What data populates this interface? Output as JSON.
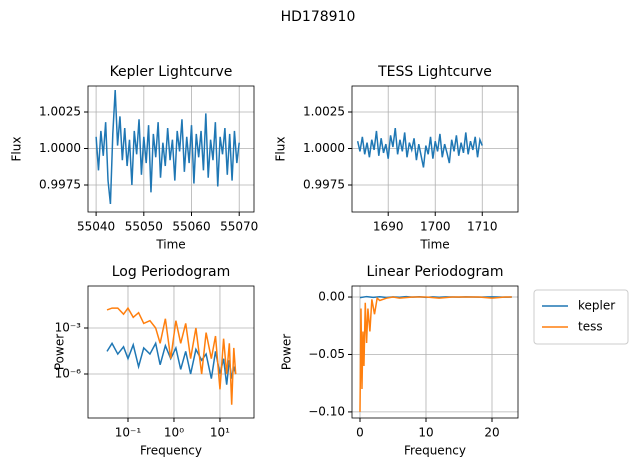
{
  "title": "HD178910",
  "chart_data": [
    {
      "type": "line",
      "title": "Kepler Lightcurve",
      "xlabel": "Time",
      "ylabel": "Flux",
      "grid": true,
      "xlim": [
        55038.3,
        55073.1
      ],
      "ylim": [
        0.99565,
        1.00428
      ],
      "xticks": [
        55040,
        55050,
        55060,
        55070
      ],
      "yticks": [
        0.9975,
        {
          "value": 1,
          "label": "1.0000"
        },
        1.0025
      ],
      "series": [
        {
          "name": "kepler",
          "color": "#1f77b4",
          "x": [
            55040,
            55040.5,
            55041,
            55041.5,
            55042,
            55042.5,
            55043,
            55043.5,
            55044,
            55044.5,
            55045,
            55045.5,
            55046,
            55046.5,
            55047,
            55047.5,
            55048,
            55048.5,
            55049,
            55049.5,
            55050,
            55050.5,
            55051,
            55051.5,
            55052,
            55052.5,
            55053,
            55053.5,
            55054,
            55054.5,
            55055,
            55055.5,
            55056,
            55056.5,
            55057,
            55057.5,
            55058,
            55058.5,
            55059,
            55059.5,
            55060,
            55060.5,
            55061,
            55061.5,
            55062,
            55062.5,
            55063,
            55063.5,
            55064,
            55064.5,
            55065,
            55065.5,
            55066,
            55066.5,
            55067,
            55067.5,
            55068,
            55068.5,
            55069,
            55069.5,
            55070
          ],
          "values": [
            1.0008,
            0.9985,
            1.0012,
            0.9995,
            1.0018,
            0.9978,
            0.9962,
            1.001,
            1.004,
            1.0002,
            1.0022,
            0.9992,
            1.0014,
            0.9988,
            1.0006,
            0.9975,
            1.0012,
            0.9996,
            1.002,
            0.9982,
            1.0008,
            0.999,
            1.0016,
            0.997,
            1.001,
            0.9994,
            1.0018,
            0.998,
            1.0004,
            0.9988,
            1.0014,
            0.9992,
            1.0006,
            0.9978,
            1.0012,
            0.9998,
            1.002,
            0.9984,
            1.0008,
            0.999,
            1.0016,
            0.9976,
            1.001,
            0.9994,
            1.0012,
            0.9985,
            1.0024,
            0.998,
            1.0006,
            0.9992,
            1.0018,
            0.9974,
            1.0008,
            0.9996,
            1.0014,
            0.9982,
            1.001,
            0.9978,
            1.0012,
            0.999,
            1.0004
          ]
        }
      ]
    },
    {
      "type": "line",
      "title": "TESS Lightcurve",
      "xlabel": "Time",
      "ylabel": "Flux",
      "grid": true,
      "xlim": [
        1682.3,
        1717.6
      ],
      "ylim": [
        0.99565,
        1.00428
      ],
      "xticks": [
        1690,
        1700,
        1710
      ],
      "yticks": [
        0.9975,
        {
          "value": 1,
          "label": "1.0000"
        },
        1.0025
      ],
      "series": [
        {
          "name": "tess",
          "color": "#1f77b4",
          "x": [
            1683.5,
            1684,
            1684.5,
            1685,
            1685.5,
            1686,
            1686.5,
            1687,
            1687.5,
            1688,
            1688.5,
            1689,
            1689.5,
            1690,
            1690.5,
            1691,
            1691.5,
            1692,
            1692.5,
            1693,
            1693.5,
            1694,
            1694.5,
            1695,
            1695.5,
            1696,
            1696.5,
            1697,
            1697.5,
            1698,
            1698.5,
            1699,
            1699.5,
            1700,
            1700.5,
            1701,
            1701.5,
            1702,
            1702.5,
            1703,
            1703.5,
            1704,
            1704.5,
            1705,
            1705.5,
            1706,
            1706.5,
            1707,
            1707.5,
            1708,
            1708.5,
            1709,
            1709.5,
            1710
          ],
          "values": [
            1.0005,
            0.9998,
            1.0008,
            0.9996,
            1.0004,
            0.9994,
            1.0006,
            0.9999,
            1.0012,
            0.9995,
            1.0007,
            0.9997,
            1.0003,
            0.9993,
            1.0009,
            1.0001,
            1.0014,
            0.9996,
            1.0006,
            0.9998,
            1.0011,
            0.9994,
            1.0004,
            0.9999,
            1.0007,
            0.9992,
            1.0003,
            0.9995,
            0.9987,
            1.0002,
            0.9996,
            1.0008,
            0.9993,
            1.0005,
            0.9998,
            1.001,
            0.9994,
            1.0003,
            0.9997,
            0.999,
            1.0006,
            0.9998,
            1.0009,
            0.9995,
            1.0004,
            0.9997,
            1.0011,
            0.9996,
            1.0005,
            0.9999,
            1.0008,
            0.9994,
            1.0006,
            1.0002
          ]
        }
      ]
    },
    {
      "type": "line",
      "title": "Log Periodogram",
      "xlabel": "Frequency",
      "ylabel": "Power",
      "grid": true,
      "xscale": "log",
      "yscale": "log",
      "xlim": [
        0.0135,
        55
      ],
      "ylim": [
        1.35e-09,
        0.55
      ],
      "xticks": [
        {
          "value": 0.1,
          "label": "10⁻¹"
        },
        {
          "value": 1,
          "label": "10⁰"
        },
        {
          "value": 10,
          "label": "10¹"
        }
      ],
      "yticks": [
        {
          "value": 1e-06,
          "label": "10⁻⁶"
        },
        {
          "value": 0.001,
          "label": "10⁻³"
        }
      ],
      "series": [
        {
          "name": "kepler",
          "color": "#1f77b4",
          "x": [
            0.035,
            0.045,
            0.06,
            0.08,
            0.1,
            0.13,
            0.17,
            0.22,
            0.3,
            0.4,
            0.5,
            0.65,
            0.85,
            1.1,
            1.4,
            1.8,
            2.3,
            3,
            4,
            5,
            6.5,
            8,
            10,
            12,
            14,
            16,
            18,
            20,
            22
          ],
          "values": [
            3e-05,
            0.0001,
            2e-05,
            6e-05,
            1e-05,
            8e-05,
            3e-06,
            5e-05,
            2e-05,
            0.0001,
            4e-06,
            7e-05,
            1e-05,
            5e-05,
            2e-06,
            3e-05,
            1e-06,
            4e-05,
            8e-06,
            2e-05,
            5e-07,
            3e-05,
            1e-06,
            1e-05,
            2e-07,
            8e-06,
            5e-07,
            3e-06,
            1e-06
          ]
        },
        {
          "name": "tess",
          "color": "#ff7f0e",
          "x": [
            0.035,
            0.045,
            0.06,
            0.08,
            0.1,
            0.13,
            0.17,
            0.22,
            0.3,
            0.4,
            0.5,
            0.65,
            0.85,
            1.1,
            1.4,
            1.8,
            2.3,
            3,
            4,
            5,
            6.5,
            8,
            10,
            12,
            14,
            16,
            18,
            20,
            22
          ],
          "values": [
            0.015,
            0.02,
            0.02,
            0.008,
            0.02,
            0.005,
            0.01,
            0.002,
            0.003,
            0.001,
            0.0001,
            0.004,
            1e-05,
            0.003,
            0.0001,
            0.002,
            1e-05,
            0.001,
            1e-06,
            0.0005,
            1e-05,
            0.0003,
            1e-07,
            0.0002,
            1e-06,
            0.0001,
            1e-08,
            5e-05,
            1e-06
          ]
        }
      ]
    },
    {
      "type": "line",
      "title": "Linear Periodogram",
      "xlabel": "Frequency",
      "ylabel": "Power",
      "grid": true,
      "legend": "outside-right",
      "xlim": [
        -1.21,
        23.94
      ],
      "ylim": [
        -0.1053,
        0.0096
      ],
      "xticks": [
        0,
        10,
        20
      ],
      "yticks": [
        {
          "value": -0.1,
          "label": "−0.10"
        },
        {
          "value": -0.05,
          "label": "−0.05"
        },
        {
          "value": 0,
          "label": "0.00"
        }
      ],
      "series": [
        {
          "name": "kepler",
          "color": "#1f77b4",
          "x": [
            0,
            1,
            2,
            3,
            4,
            5,
            6,
            7,
            8,
            9,
            10,
            11,
            12,
            13,
            14,
            15,
            16,
            17,
            18,
            19,
            20,
            21,
            22,
            23
          ],
          "values": [
            -0.0005,
            0.0004,
            -0.0003,
            0.0002,
            -0.0004,
            0.0001,
            -0.0002,
            0.0003,
            -0.0001,
            0.0002,
            -0.0003,
            0.0001,
            -0.0002,
            0.0001,
            0,
            -0.0001,
            0.0001,
            0,
            -0.0001,
            0,
            0.0001,
            0,
            -0.0001,
            0
          ]
        },
        {
          "name": "tess",
          "color": "#ff7f0e",
          "x": [
            0,
            0.15,
            0.3,
            0.45,
            0.6,
            0.8,
            1,
            1.2,
            1.5,
            1.8,
            2.2,
            2.6,
            3,
            4,
            5,
            6,
            8,
            10,
            12,
            14,
            16,
            18,
            20,
            22,
            23
          ],
          "values": [
            -0.1,
            -0.01,
            -0.08,
            -0.03,
            -0.06,
            -0.005,
            -0.04,
            -0.01,
            -0.03,
            -0.002,
            -0.015,
            -0.001,
            -0.003,
            -0.001,
            0,
            -0.001,
            0,
            0,
            -0.001,
            0,
            0,
            0,
            -0.001,
            0,
            0
          ]
        }
      ]
    }
  ]
}
